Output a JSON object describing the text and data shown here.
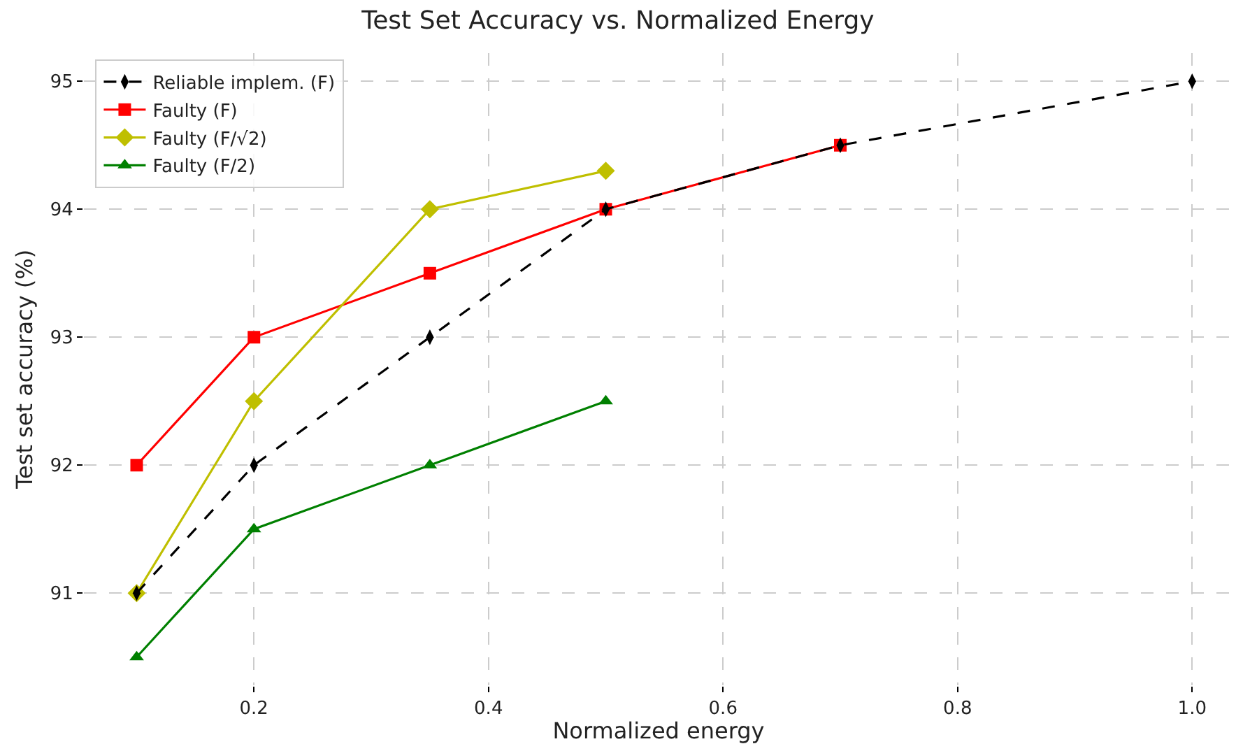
{
  "chart_data": {
    "type": "line",
    "title": "Test Set Accuracy vs. Normalized Energy",
    "xlabel": "Normalized energy",
    "ylabel": "Test set accuracy (%)",
    "xlim": [
      0.055,
      1.035
    ],
    "xticks": [
      {
        "value": 0.2,
        "label": "0.2"
      },
      {
        "value": 0.4,
        "label": "0.4"
      },
      {
        "value": 0.6,
        "label": "0.6"
      },
      {
        "value": 0.8,
        "label": "0.8"
      },
      {
        "value": 1.0,
        "label": "1.0"
      }
    ],
    "ylim": [
      90.28,
      95.22
    ],
    "yticks": [
      91,
      92,
      93,
      94,
      95
    ],
    "grid": true,
    "legend": "top left",
    "series": [
      {
        "name": "Reliable implem. (F)",
        "color": "#000000",
        "marker": "diamond",
        "line_style": "dashed",
        "x": [
          0.1,
          0.2,
          0.35,
          0.5,
          0.7,
          1.0
        ],
        "values": [
          91,
          92,
          93,
          94,
          94.5,
          95
        ]
      },
      {
        "name": "Faulty (F)",
        "color": "#ff0000",
        "marker": "square",
        "line_style": "solid",
        "x": [
          0.1,
          0.2,
          0.35,
          0.5,
          0.7
        ],
        "values": [
          92,
          93,
          93.5,
          94,
          94.5
        ]
      },
      {
        "name": "Faulty (F/√2)",
        "color": "#bfbf00",
        "marker": "diamond",
        "line_style": "solid",
        "x": [
          0.1,
          0.2,
          0.35,
          0.5
        ],
        "values": [
          91,
          92.5,
          94,
          94.3
        ]
      },
      {
        "name": "Faulty (F/2)",
        "color": "#008000",
        "marker": "triangle",
        "line_style": "solid",
        "x": [
          0.1,
          0.2,
          0.35,
          0.5
        ],
        "values": [
          90.5,
          91.5,
          92,
          92.5
        ]
      }
    ]
  }
}
